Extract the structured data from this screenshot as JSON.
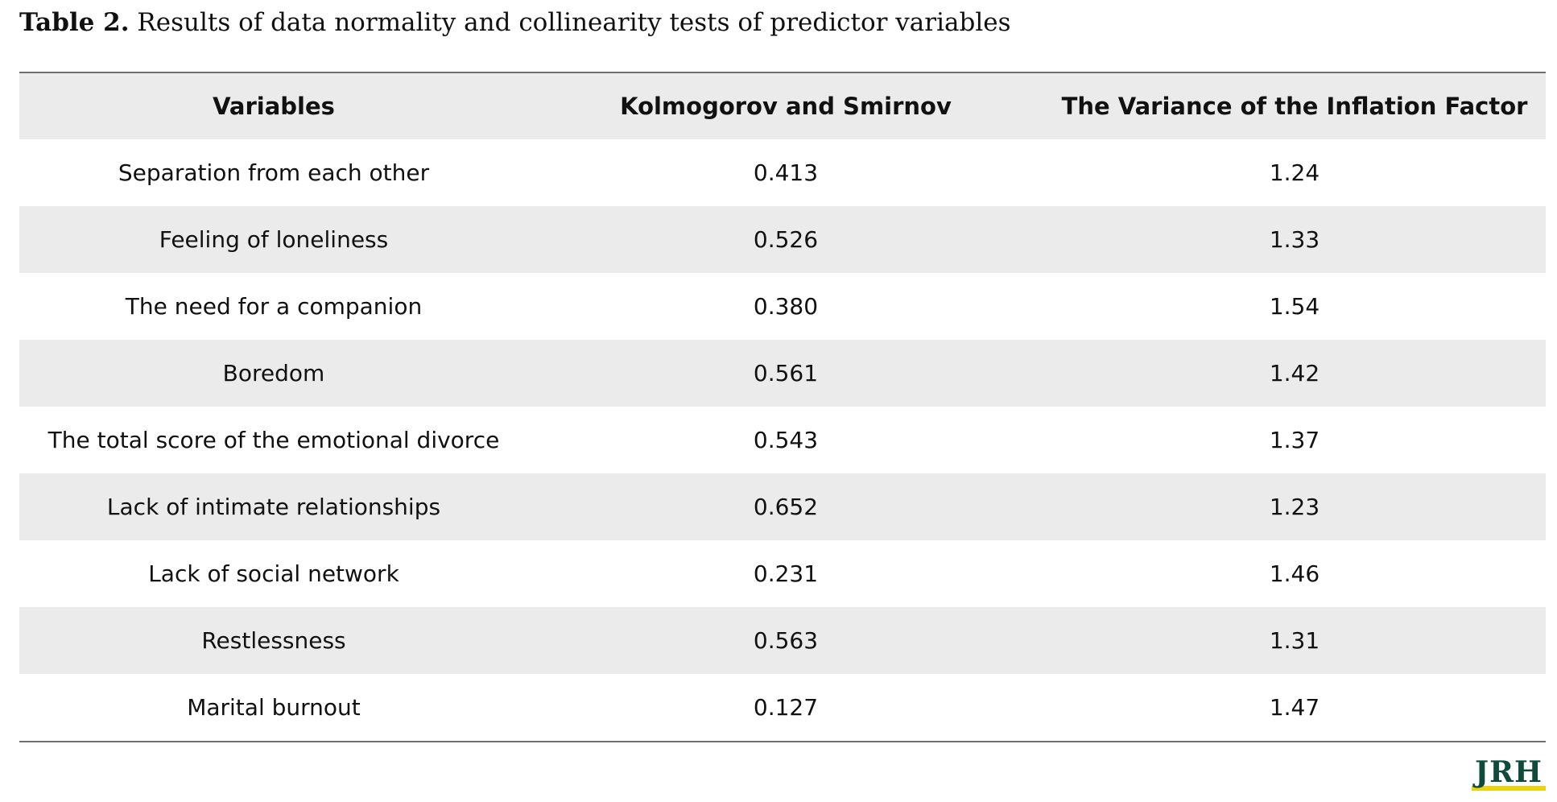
{
  "caption": {
    "label": "Table 2.",
    "text": "Results of data normality and collinearity tests of predictor variables"
  },
  "table": {
    "headers": [
      "Variables",
      "Kolmogorov and Smirnov",
      "The Variance of the Inflation Factor"
    ],
    "rows": [
      [
        "Separation from each other",
        "0.413",
        "1.24"
      ],
      [
        "Feeling of loneliness",
        "0.526",
        "1.33"
      ],
      [
        "The need for a companion",
        "0.380",
        "1.54"
      ],
      [
        "Boredom",
        "0.561",
        "1.42"
      ],
      [
        "The total score of the emotional divorce",
        "0.543",
        "1.37"
      ],
      [
        "Lack of intimate relationships",
        "0.652",
        "1.23"
      ],
      [
        "Lack of social network",
        "0.231",
        "1.46"
      ],
      [
        "Restlessness",
        "0.563",
        "1.31"
      ],
      [
        "Marital burnout",
        "0.127",
        "1.47"
      ]
    ]
  },
  "logo": {
    "text": "JRH"
  },
  "colors": {
    "stripe": "#ebebeb",
    "rule": "#6f6f6f",
    "logo_green": "#0f4b3a",
    "logo_yellow": "#e8d31a"
  }
}
